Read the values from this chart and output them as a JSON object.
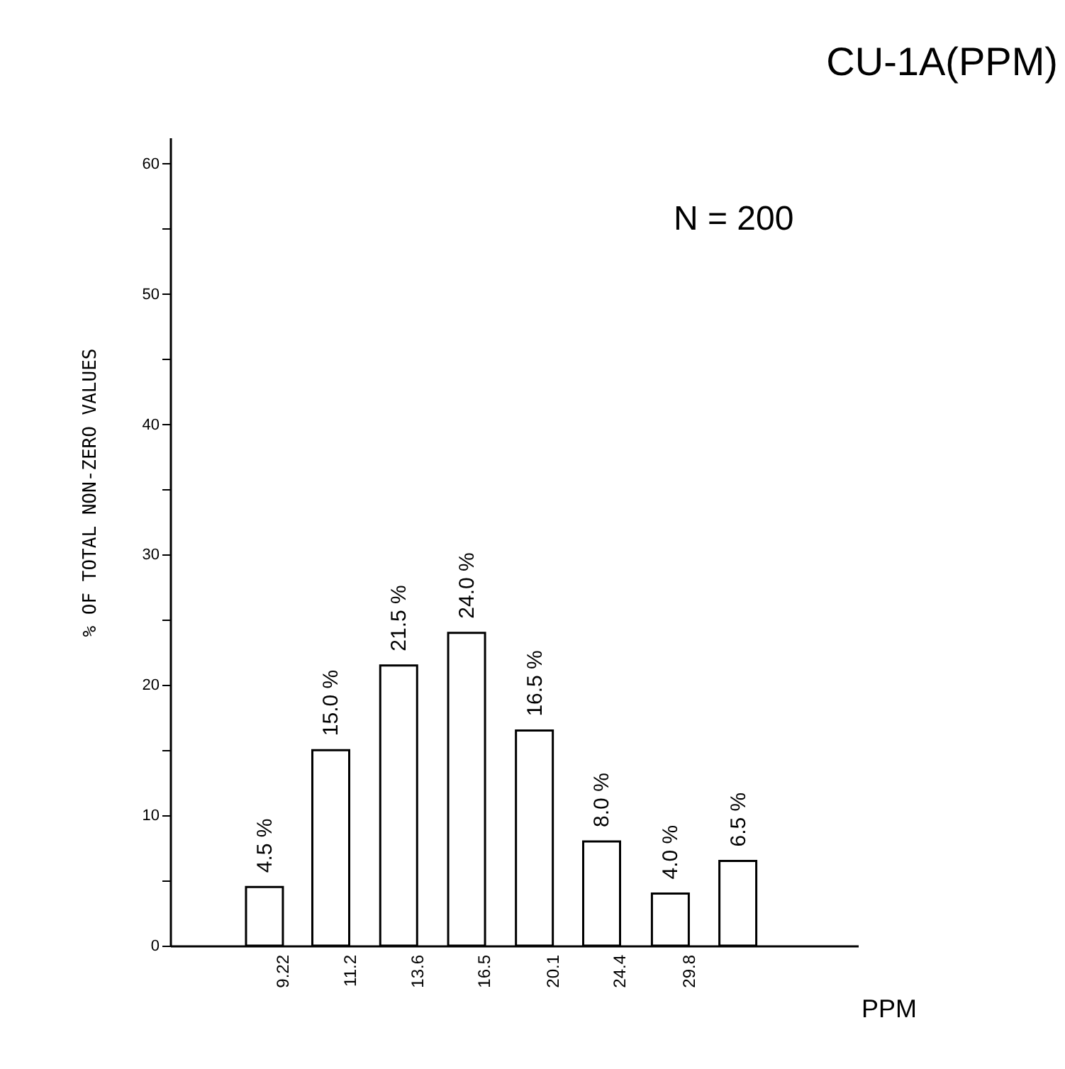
{
  "chart_data": {
    "type": "bar",
    "title": "CU-1A(PPM)",
    "xlabel": "PPM",
    "ylabel": "% OF TOTAL NON-ZERO VALUES",
    "x": [
      8.75,
      10.6,
      12.9,
      15.7,
      19.1,
      23.2,
      28.3,
      34.4
    ],
    "values": [
      4.5,
      15.0,
      21.5,
      24.0,
      16.5,
      8.0,
      4.0,
      6.5
    ],
    "value_labels": [
      "4.5 %",
      "15.0 %",
      "21.5 %",
      "24.0 %",
      "16.5 %",
      "8.0 %",
      "4.0 %",
      "6.5 %"
    ],
    "color": "#ffffff",
    "log": "x",
    "xlim": [
      6.8,
      47.7
    ],
    "xticks": [
      9.22,
      11.2,
      13.6,
      16.5,
      20.1,
      24.4,
      29.8
    ],
    "ylim": [
      0,
      62
    ],
    "yticks": [
      0,
      {
        "value": 5,
        "label": null
      },
      10,
      {
        "value": 15,
        "label": null
      },
      20,
      {
        "value": 25,
        "label": null
      },
      30,
      {
        "value": 35,
        "label": null
      },
      40,
      {
        "value": 45,
        "label": null
      },
      50,
      {
        "value": 55,
        "label": null
      },
      60
    ],
    "annotations": [
      "N = 200"
    ]
  }
}
